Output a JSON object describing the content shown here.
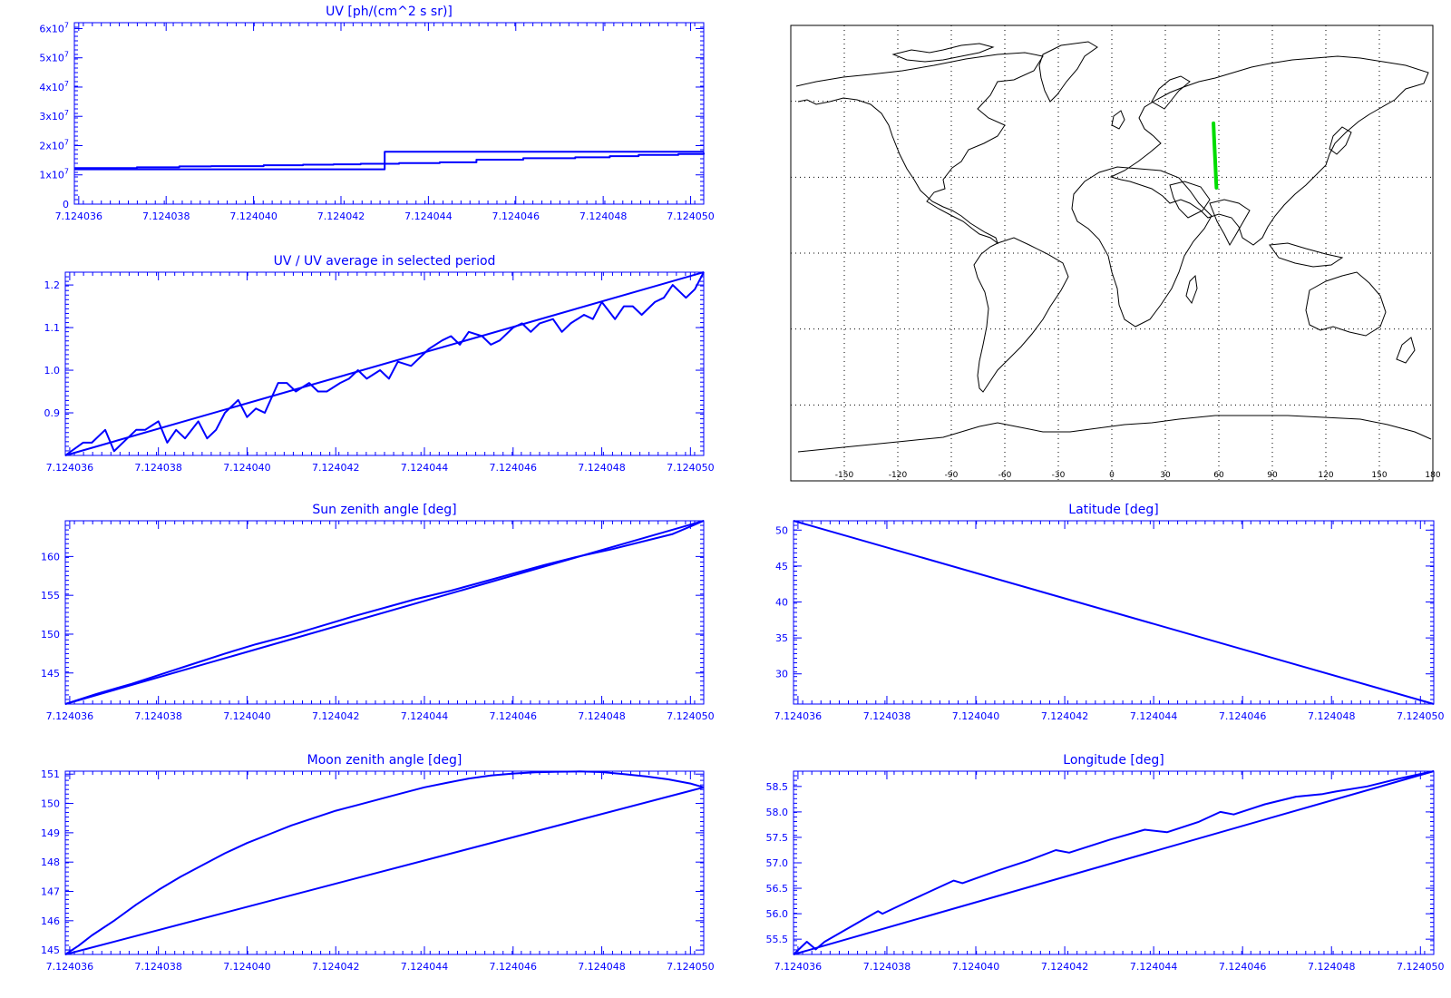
{
  "colors": {
    "plot": "#0000ff",
    "track": "#00dd00",
    "coast": "#000000",
    "background": "#ffffff"
  },
  "map": {
    "lon_ticks": [
      "-150",
      "-120",
      "-90",
      "-60",
      "-30",
      "0",
      "30",
      "60",
      "90",
      "120",
      "150",
      "180"
    ],
    "lon_range": [
      -180,
      180
    ],
    "lat_range": [
      -90,
      90
    ],
    "grid": "dotted, every 30 deg",
    "track_lonlat": [
      [
        57.0,
        51.3
      ],
      [
        57.3,
        46.0
      ],
      [
        57.7,
        40.0
      ],
      [
        58.1,
        34.0
      ],
      [
        58.4,
        29.0
      ],
      [
        58.7,
        25.8
      ]
    ]
  },
  "chart_data": [
    {
      "type": "line",
      "title": "UV [ph/(cm^2 s sr)]",
      "xlim": [
        7.1240359,
        7.1240503
      ],
      "ylim": [
        0,
        62000000
      ],
      "x_ticks": [
        7.124036,
        7.124038,
        7.12404,
        7.124042,
        7.124044,
        7.124046,
        7.124048,
        7.12405
      ],
      "x_tick_labels": [
        "7.124036",
        "7.124038",
        "7.124040",
        "7.124042",
        "7.124044",
        "7.124046",
        "7.124048",
        "7.124050"
      ],
      "y_ticks": [
        0,
        10000000,
        20000000,
        30000000,
        40000000,
        50000000,
        60000000
      ],
      "y_tick_labels": [
        "0",
        "1×10⁷",
        "2×10⁷",
        "3×10⁷",
        "4×10⁷",
        "5×10⁷",
        "6×10⁷"
      ],
      "y_tick_bases": [
        "0",
        "1x10",
        "2x10",
        "3x10",
        "4x10",
        "5x10",
        "6x10"
      ],
      "y_tick_exps": [
        "",
        "7",
        "7",
        "7",
        "7",
        "7",
        "7"
      ],
      "series": [
        {
          "step": true,
          "x": [
            7.1240359,
            7.124043,
            7.1240503
          ],
          "y": [
            11900000,
            17900000,
            17900000
          ]
        },
        {
          "step": true,
          "x": [
            7.1240359,
            7.12403733,
            7.1240383,
            7.12403903,
            7.12404023,
            7.12404113,
            7.12404183,
            7.12404245,
            7.12404333,
            7.12404426,
            7.1240451,
            7.12404617,
            7.12404736,
            7.12404815,
            7.12404881,
            7.12404972,
            7.1240503
          ],
          "y": [
            12300000,
            12600000,
            12900000,
            13000000,
            13300000,
            13500000,
            13600000,
            13800000,
            14000000,
            14300000,
            15200000,
            15700000,
            16000000,
            16400000,
            16800000,
            17100000,
            17500000
          ]
        }
      ]
    },
    {
      "type": "line",
      "title": "UV / UV average in selected period",
      "xlim": [
        7.1240359,
        7.1240503
      ],
      "ylim": [
        0.8,
        1.23
      ],
      "x_ticks": [
        7.124036,
        7.124038,
        7.12404,
        7.124042,
        7.124044,
        7.124046,
        7.124048,
        7.12405
      ],
      "x_tick_labels": [
        "7.124036",
        "7.124038",
        "7.124040",
        "7.124042",
        "7.124044",
        "7.124046",
        "7.124048",
        "7.124050"
      ],
      "y_ticks": [
        0.9,
        1.0,
        1.1,
        1.2
      ],
      "y_tick_labels": [
        "0.9",
        "1.0",
        "1.1",
        "1.2"
      ],
      "series": [
        {
          "x": [
            7.1240359,
            7.1240503
          ],
          "y": [
            0.8,
            1.23
          ]
        },
        {
          "x": [
            7.1240359,
            7.1240363,
            7.1240365,
            7.1240368,
            7.124037,
            7.1240373,
            7.1240375,
            7.1240377,
            7.124038,
            7.1240382,
            7.1240384,
            7.1240386,
            7.1240389,
            7.1240391,
            7.1240393,
            7.1240395,
            7.1240398,
            7.12404,
            7.1240402,
            7.1240404,
            7.1240407,
            7.1240409,
            7.1240411,
            7.1240414,
            7.1240416,
            7.1240418,
            7.1240421,
            7.1240423,
            7.1240425,
            7.1240427,
            7.124043,
            7.1240432,
            7.1240434,
            7.1240437,
            7.1240439,
            7.1240441,
            7.1240444,
            7.1240446,
            7.1240448,
            7.124045,
            7.1240453,
            7.1240455,
            7.1240457,
            7.124046,
            7.1240462,
            7.1240464,
            7.1240466,
            7.1240469,
            7.1240471,
            7.1240473,
            7.1240476,
            7.1240478,
            7.124048,
            7.1240483,
            7.1240485,
            7.1240487,
            7.1240489,
            7.1240492,
            7.1240494,
            7.1240496,
            7.1240499,
            7.1240501,
            7.1240503
          ],
          "y": [
            0.8,
            0.83,
            0.83,
            0.86,
            0.81,
            0.84,
            0.86,
            0.86,
            0.88,
            0.83,
            0.86,
            0.84,
            0.88,
            0.84,
            0.86,
            0.9,
            0.93,
            0.89,
            0.91,
            0.9,
            0.97,
            0.97,
            0.95,
            0.97,
            0.95,
            0.95,
            0.97,
            0.98,
            1.0,
            0.98,
            1.0,
            0.98,
            1.02,
            1.01,
            1.03,
            1.05,
            1.07,
            1.08,
            1.06,
            1.09,
            1.08,
            1.06,
            1.07,
            1.1,
            1.11,
            1.09,
            1.11,
            1.12,
            1.09,
            1.11,
            1.13,
            1.12,
            1.16,
            1.12,
            1.15,
            1.15,
            1.13,
            1.16,
            1.17,
            1.2,
            1.17,
            1.19,
            1.23
          ]
        }
      ]
    },
    {
      "type": "line",
      "title": "Sun zenith angle [deg]",
      "xlim": [
        7.1240359,
        7.1240503
      ],
      "ylim": [
        141,
        164.6
      ],
      "x_ticks": [
        7.124036,
        7.124038,
        7.12404,
        7.124042,
        7.124044,
        7.124046,
        7.124048,
        7.12405
      ],
      "x_tick_labels": [
        "7.124036",
        "7.124038",
        "7.124040",
        "7.124042",
        "7.124044",
        "7.124046",
        "7.124048",
        "7.124050"
      ],
      "y_ticks": [
        145,
        150,
        155,
        160
      ],
      "y_tick_labels": [
        "145",
        "150",
        "155",
        "160"
      ],
      "series": [
        {
          "x": [
            7.1240359,
            7.1240503
          ],
          "y": [
            141.0,
            164.6
          ]
        },
        {
          "x": [
            7.1240359,
            7.1240366,
            7.1240374,
            7.1240381,
            7.1240388,
            7.1240395,
            7.1240402,
            7.124041,
            7.1240417,
            7.1240424,
            7.1240431,
            7.1240438,
            7.1240446,
            7.1240453,
            7.124046,
            7.1240467,
            7.1240474,
            7.1240482,
            7.1240489,
            7.1240496,
            7.1240503
          ],
          "y": [
            141.0,
            142.3,
            143.6,
            144.9,
            146.2,
            147.5,
            148.7,
            149.9,
            151.1,
            152.3,
            153.4,
            154.5,
            155.6,
            156.7,
            157.8,
            158.9,
            159.9,
            160.9,
            161.9,
            162.9,
            164.6
          ]
        }
      ]
    },
    {
      "type": "line",
      "title": "Latitude [deg]",
      "xlim": [
        7.1240359,
        7.1240503
      ],
      "ylim": [
        25.8,
        51.3
      ],
      "x_ticks": [
        7.124036,
        7.124038,
        7.12404,
        7.124042,
        7.124044,
        7.124046,
        7.124048,
        7.12405
      ],
      "x_tick_labels": [
        "7.124036",
        "7.124038",
        "7.124040",
        "7.124042",
        "7.124044",
        "7.124046",
        "7.124048",
        "7.124050"
      ],
      "y_ticks": [
        30,
        35,
        40,
        45,
        50
      ],
      "y_tick_labels": [
        "30",
        "35",
        "40",
        "45",
        "50"
      ],
      "series": [
        {
          "x": [
            7.1240359,
            7.1240503
          ],
          "y": [
            51.3,
            25.8
          ]
        }
      ]
    },
    {
      "type": "line",
      "title": "Moon zenith angle [deg]",
      "xlim": [
        7.1240359,
        7.1240503
      ],
      "ylim": [
        144.85,
        151.1
      ],
      "x_ticks": [
        7.124036,
        7.124038,
        7.12404,
        7.124042,
        7.124044,
        7.124046,
        7.124048,
        7.12405
      ],
      "x_tick_labels": [
        "7.124036",
        "7.124038",
        "7.124040",
        "7.124042",
        "7.124044",
        "7.124046",
        "7.124048",
        "7.124050"
      ],
      "y_ticks": [
        145,
        146,
        147,
        148,
        149,
        150,
        151
      ],
      "y_tick_labels": [
        "145",
        "146",
        "147",
        "148",
        "149",
        "150",
        "151"
      ],
      "series": [
        {
          "x": [
            7.1240359,
            7.1240503
          ],
          "y": [
            144.85,
            150.55
          ]
        },
        {
          "x": [
            7.1240359,
            7.1240362,
            7.1240365,
            7.124037,
            7.1240375,
            7.124038,
            7.1240385,
            7.124039,
            7.1240395,
            7.12404,
            7.1240405,
            7.124041,
            7.1240415,
            7.124042,
            7.1240425,
            7.124043,
            7.1240435,
            7.124044,
            7.1240445,
            7.124045,
            7.1240455,
            7.124046,
            7.1240465,
            7.124047,
            7.1240475,
            7.124048,
            7.1240485,
            7.124049,
            7.1240495,
            7.12405,
            7.1240503
          ],
          "y": [
            144.85,
            145.15,
            145.5,
            146.0,
            146.55,
            147.05,
            147.5,
            147.9,
            148.3,
            148.65,
            148.95,
            149.25,
            149.5,
            149.75,
            149.95,
            150.15,
            150.35,
            150.55,
            150.7,
            150.85,
            150.95,
            151.02,
            151.06,
            151.08,
            151.09,
            151.07,
            151.0,
            150.92,
            150.82,
            150.68,
            150.55
          ]
        }
      ]
    },
    {
      "type": "line",
      "title": "Longitude [deg]",
      "xlim": [
        7.1240359,
        7.1240503
      ],
      "ylim": [
        55.2,
        58.8
      ],
      "x_ticks": [
        7.124036,
        7.124038,
        7.12404,
        7.124042,
        7.124044,
        7.124046,
        7.124048,
        7.12405
      ],
      "x_tick_labels": [
        "7.124036",
        "7.124038",
        "7.124040",
        "7.124042",
        "7.124044",
        "7.124046",
        "7.124048",
        "7.124050"
      ],
      "y_ticks": [
        55.5,
        56.0,
        56.5,
        57.0,
        57.5,
        58.0,
        58.5
      ],
      "y_tick_labels": [
        "55.5",
        "56.0",
        "56.5",
        "57.0",
        "57.5",
        "58.0",
        "58.5"
      ],
      "series": [
        {
          "x": [
            7.1240359,
            7.1240503
          ],
          "y": [
            55.2,
            58.8
          ]
        },
        {
          "x": [
            7.1240359,
            7.1240362,
            7.1240364,
            7.1240366,
            7.124037,
            7.1240374,
            7.1240378,
            7.1240379,
            7.1240385,
            7.124039,
            7.1240395,
            7.1240397,
            7.1240405,
            7.1240412,
            7.1240418,
            7.1240421,
            7.124043,
            7.1240438,
            7.1240443,
            7.124045,
            7.1240455,
            7.1240458,
            7.1240465,
            7.1240472,
            7.1240478,
            7.1240481,
            7.1240488,
            7.1240495,
            7.1240503
          ],
          "y": [
            55.2,
            55.45,
            55.3,
            55.45,
            55.65,
            55.85,
            56.05,
            56.0,
            56.25,
            56.45,
            56.65,
            56.6,
            56.85,
            57.05,
            57.25,
            57.2,
            57.45,
            57.65,
            57.6,
            57.8,
            58.0,
            57.95,
            58.15,
            58.3,
            58.35,
            58.4,
            58.5,
            58.65,
            58.8
          ]
        }
      ]
    }
  ]
}
